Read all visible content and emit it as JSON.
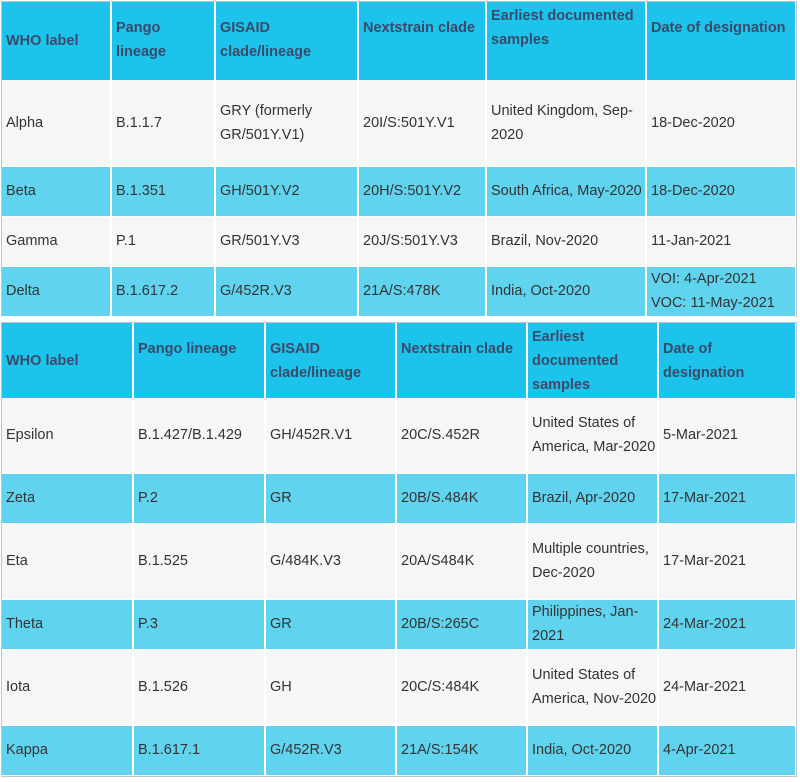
{
  "table1": {
    "headers": [
      "WHO label",
      "Pango lineage",
      "GISAID clade/lineage",
      "Nextstrain clade",
      "Earliest documented samples",
      "Date of designation"
    ],
    "rows": [
      [
        "Alpha",
        "B.1.1.7",
        "GRY (formerly GR/501Y.V1)",
        "20I/S:501Y.V1",
        "United Kingdom, Sep-2020",
        "18-Dec-2020"
      ],
      [
        "Beta",
        "B.1.351",
        "GH/501Y.V2",
        "20H/S:501Y.V2",
        "South Africa, May-2020",
        "18-Dec-2020"
      ],
      [
        "Gamma",
        "P.1",
        "GR/501Y.V3",
        "20J/S:501Y.V3",
        "Brazil, Nov-2020",
        "11-Jan-2021"
      ],
      [
        "Delta",
        "B.1.617.2",
        "G/452R.V3",
        "21A/S:478K",
        "India, Oct-2020",
        "VOI: 4-Apr-2021 VOC: 11-May-2021"
      ]
    ]
  },
  "table2": {
    "headers": [
      "WHO label",
      "Pango lineage",
      "GISAID clade/lineage",
      "Nextstrain clade",
      "Earliest documented samples",
      "Date of designation"
    ],
    "rows": [
      [
        "Epsilon",
        "B.1.427/B.1.429",
        "GH/452R.V1",
        "20C/S.452R",
        "United States of America, Mar-2020",
        "5-Mar-2021"
      ],
      [
        "Zeta",
        "P.2",
        "GR",
        "20B/S.484K",
        "Brazil, Apr-2020",
        "17-Mar-2021"
      ],
      [
        "Eta",
        "B.1.525",
        "G/484K.V3",
        "20A/S484K",
        "Multiple countries, Dec-2020",
        "17-Mar-2021"
      ],
      [
        "Theta",
        "P.3",
        "GR",
        "20B/S:265C",
        "Philippines, Jan-2021",
        "24-Mar-2021"
      ],
      [
        "Iota",
        "B.1.526",
        "GH",
        "20C/S:484K",
        "United States of America, Nov-2020",
        "24-Mar-2021"
      ],
      [
        "Kappa",
        "B.1.617.1",
        "G/452R.V3",
        "21A/S:154K",
        "India, Oct-2020",
        "4-Apr-2021"
      ]
    ]
  }
}
